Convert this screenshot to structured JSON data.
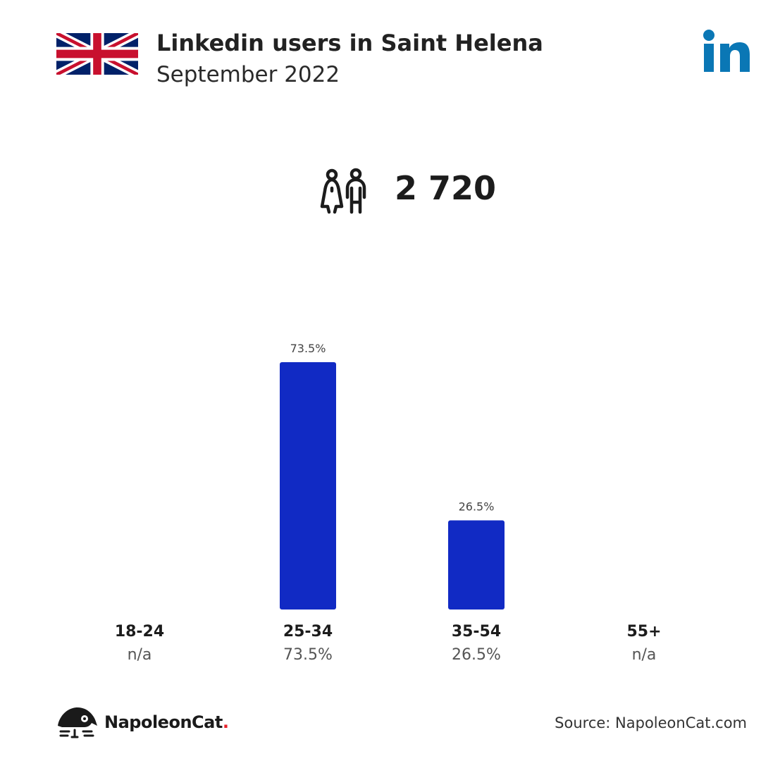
{
  "header": {
    "title": "Linkedin users in Saint Helena",
    "subtitle": "September 2022",
    "flag_icon": "uk-flag-icon",
    "platform_icon": "linkedin-icon"
  },
  "summary": {
    "icon": "users-icon",
    "total": "2 720"
  },
  "chart_data": {
    "type": "bar",
    "categories": [
      "18-24",
      "25-34",
      "35-54",
      "55+"
    ],
    "values": [
      null,
      73.5,
      26.5,
      null
    ],
    "value_labels": [
      "n/a",
      "73.5%",
      "26.5%",
      "n/a"
    ],
    "bar_labels": [
      "",
      "73.5%",
      "26.5%",
      ""
    ],
    "ylim": [
      0,
      73.5
    ],
    "grid": false,
    "bar_color": "#112ac4"
  },
  "footer": {
    "brand_name": "NapoleonCat",
    "brand_dot": ".",
    "brand_icon": "napoleoncat-logo-icon",
    "source": "Source: NapoleonCat.com"
  },
  "colors": {
    "linkedin_blue": "#0a77b5",
    "bar": "#112ac4",
    "brand_accent": "#e8202a"
  }
}
